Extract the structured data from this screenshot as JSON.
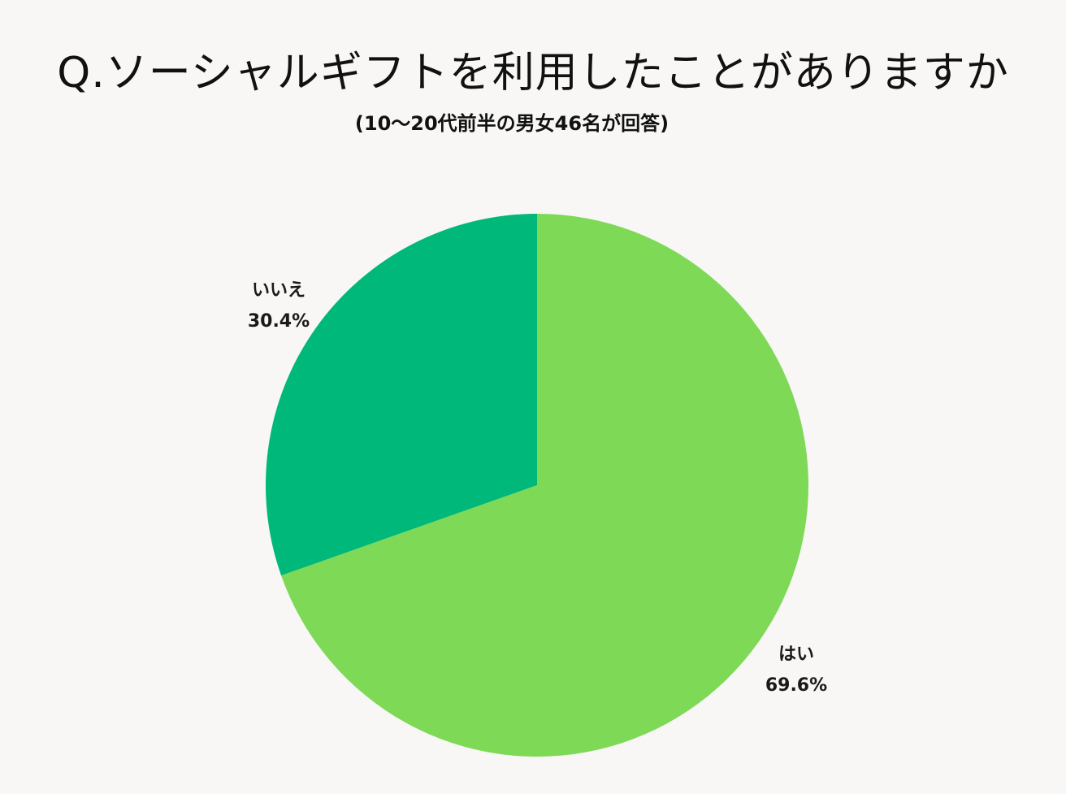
{
  "title": "Q.ソーシャルギフトを利用したことがありますか",
  "subtitle": "(10～20代前半の男女46名が回答)",
  "chart_data": {
    "type": "pie",
    "title": "Q.ソーシャルギフトを利用したことがありますか",
    "subtitle": "(10～20代前半の男女46名が回答)",
    "start_angle_deg": 0,
    "direction": "clockwise",
    "slices": [
      {
        "label": "はい",
        "value": 69.6,
        "value_label": "69.6%",
        "color": "#7ed957"
      },
      {
        "label": "いいえ",
        "value": 30.4,
        "value_label": "30.4%",
        "color": "#00b87a"
      }
    ],
    "legend": "none"
  }
}
